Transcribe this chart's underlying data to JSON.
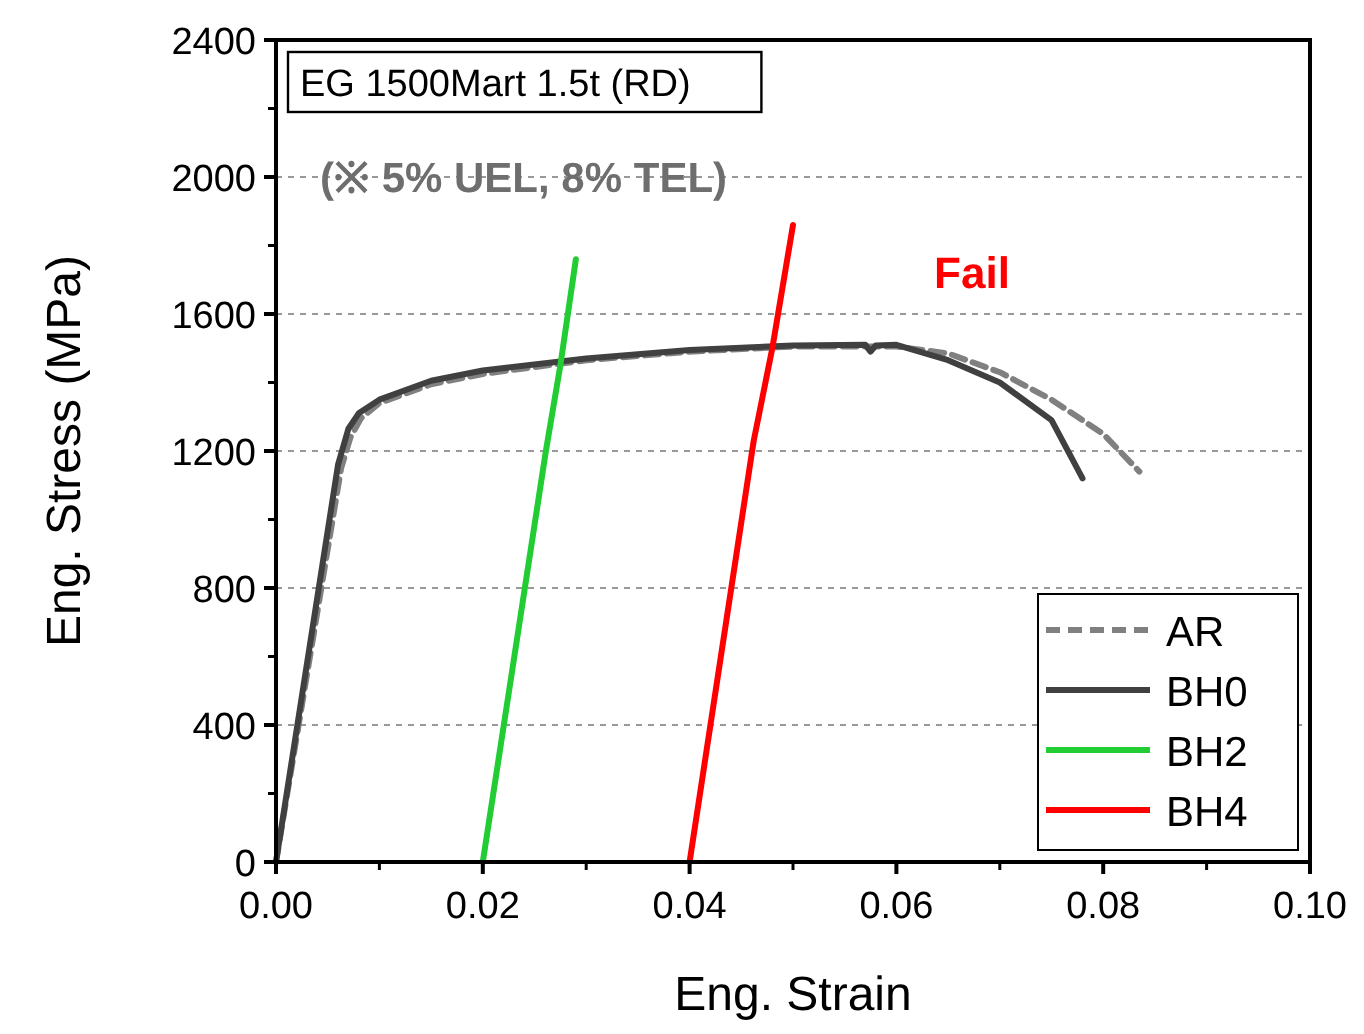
{
  "chart_data": {
    "type": "line",
    "xlabel": "Eng. Strain",
    "ylabel": "Eng. Stress (MPa)",
    "xlim": [
      0,
      0.1
    ],
    "xticks": [
      {
        "value": 0,
        "label": "0.00"
      },
      {
        "value": 0.02,
        "label": "0.02"
      },
      {
        "value": 0.04,
        "label": "0.04"
      },
      {
        "value": 0.06,
        "label": "0.06"
      },
      {
        "value": 0.08,
        "label": "0.08"
      },
      {
        "value": 0.1,
        "label": "0.10"
      }
    ],
    "ylim": [
      0,
      2400
    ],
    "yticks": [
      0,
      400,
      800,
      1200,
      1600,
      2000,
      2400
    ],
    "grid": "y",
    "legend": "bottom right",
    "marker": "none",
    "series": [
      {
        "name": "AR",
        "color": "#808080",
        "line_style": "dashed",
        "x": [
          0,
          0.0063,
          0.0072,
          0.0082,
          0.01,
          0.015,
          0.02,
          0.03,
          0.04,
          0.05,
          0.06,
          0.065,
          0.07,
          0.075,
          0.08,
          0.0835
        ],
        "values": [
          0,
          1150,
          1240,
          1295,
          1340,
          1395,
          1425,
          1465,
          1490,
          1505,
          1505,
          1485,
          1430,
          1350,
          1250,
          1140
        ]
      },
      {
        "name": "BH0",
        "color": "#404040",
        "line_style": "solid",
        "x": [
          0,
          0.006,
          0.007,
          0.008,
          0.01,
          0.015,
          0.02,
          0.03,
          0.04,
          0.05,
          0.057,
          0.0575,
          0.058,
          0.06,
          0.065,
          0.07,
          0.075,
          0.078
        ],
        "values": [
          0,
          1160,
          1265,
          1310,
          1350,
          1405,
          1435,
          1470,
          1495,
          1508,
          1510,
          1490,
          1508,
          1510,
          1465,
          1400,
          1290,
          1120
        ]
      },
      {
        "name": "BH2",
        "color": "#22cc33",
        "line_style": "solid",
        "x": [
          0.02,
          0.0261,
          0.0275,
          0.029
        ],
        "values": [
          0,
          1200,
          1450,
          1760
        ]
      },
      {
        "name": "BH4",
        "color": "#ff0000",
        "line_style": "solid",
        "x": [
          0.04,
          0.0462,
          0.048,
          0.05
        ],
        "values": [
          0,
          1230,
          1500,
          1860
        ]
      }
    ],
    "annotations": [
      "EG 1500Mart 1.5t (RD)",
      "(※ 5% UEL, 8% TEL)",
      "Fail"
    ]
  }
}
